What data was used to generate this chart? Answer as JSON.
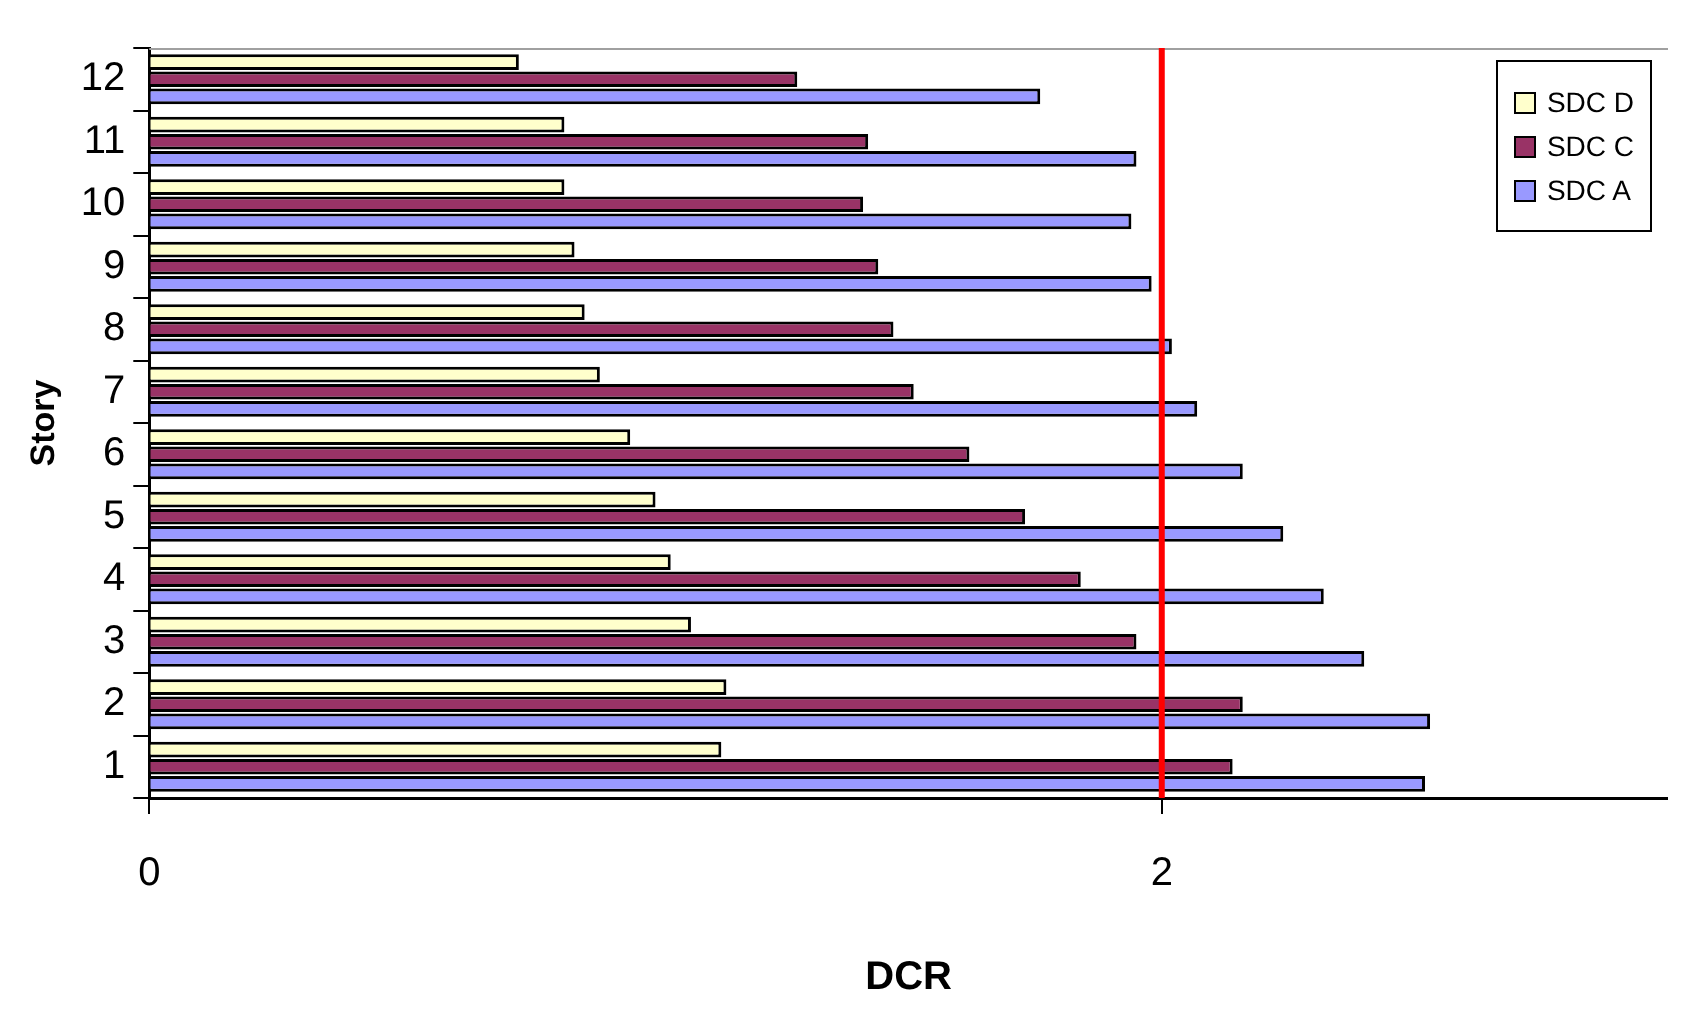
{
  "chart_data": {
    "type": "bar",
    "orientation": "horizontal",
    "xlabel": "DCR",
    "ylabel": "Story",
    "categories": [
      "12",
      "11",
      "10",
      "9",
      "8",
      "7",
      "6",
      "5",
      "4",
      "3",
      "2",
      "1"
    ],
    "series": [
      {
        "name": "SDC D",
        "color": "#ffffcc",
        "values": [
          0.73,
          0.82,
          0.82,
          0.84,
          0.86,
          0.89,
          0.95,
          1.0,
          1.03,
          1.07,
          1.14,
          1.13
        ]
      },
      {
        "name": "SDC C",
        "color": "#993366",
        "values": [
          1.28,
          1.42,
          1.41,
          1.44,
          1.47,
          1.51,
          1.62,
          1.73,
          1.84,
          1.95,
          2.16,
          2.14
        ]
      },
      {
        "name": "SDC A",
        "color": "#9999ff",
        "values": [
          1.76,
          1.95,
          1.94,
          1.98,
          2.02,
          2.07,
          2.16,
          2.24,
          2.32,
          2.4,
          2.53,
          2.52
        ]
      }
    ],
    "xlim": [
      0,
      3
    ],
    "xticks": [
      0,
      2
    ],
    "ref_lines": [
      {
        "axis": "x",
        "value": 2,
        "color": "#ff0000"
      }
    ],
    "legend": "top right"
  }
}
